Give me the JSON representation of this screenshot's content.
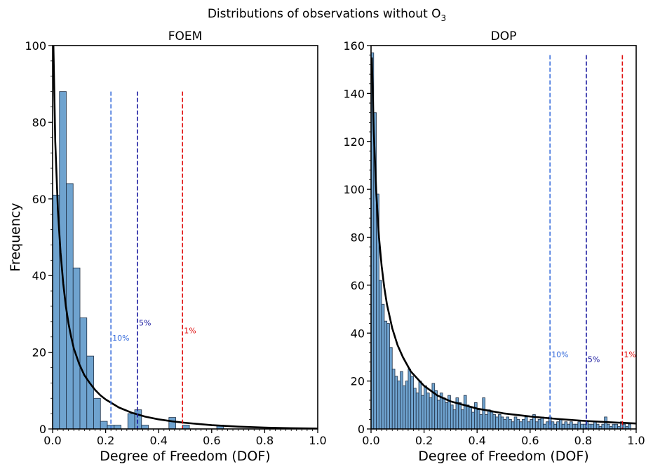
{
  "figure": {
    "suptitle": "Distributions of observations without O",
    "suptitle_subscript": "3"
  },
  "colors": {
    "bar_fill": "#6fa3cf",
    "bar_edge": "#1f2f45",
    "curve": "#000000",
    "line_10pct": "#3b6fdc",
    "line_5pct": "#1a1aa0",
    "line_1pct": "#e01010"
  },
  "chart_data": [
    {
      "type": "bar",
      "title": "FOEM",
      "xlabel": "Degree of Freedom (DOF)",
      "ylabel": "Frequency",
      "xlim": [
        0.0,
        1.0
      ],
      "ylim": [
        0,
        100
      ],
      "xticks": [
        0.0,
        0.2,
        0.4,
        0.6,
        0.8,
        1.0
      ],
      "xtick_labels": [
        "0.0",
        "0.2",
        "0.4",
        "0.6",
        "0.8",
        "1.0"
      ],
      "yticks": [
        0,
        20,
        40,
        60,
        80,
        100
      ],
      "ytick_labels": [
        "0",
        "20",
        "40",
        "60",
        "80",
        "100"
      ],
      "bin_width": 0.0258,
      "bin_start": 0.0,
      "values": [
        61,
        88,
        64,
        42,
        29,
        19,
        8,
        2,
        1,
        1,
        0,
        4,
        5,
        1,
        0,
        0,
        0,
        3,
        0,
        1,
        0,
        0,
        0,
        0,
        1,
        0,
        0,
        0,
        0,
        0,
        0,
        0,
        0,
        0,
        0,
        0,
        0,
        0,
        0
      ],
      "curve": {
        "x": [
          0.003,
          0.01,
          0.02,
          0.03,
          0.04,
          0.05,
          0.06,
          0.07,
          0.08,
          0.1,
          0.12,
          0.14,
          0.16,
          0.18,
          0.2,
          0.25,
          0.3,
          0.35,
          0.4,
          0.45,
          0.5,
          0.6,
          0.7,
          0.8,
          0.9,
          1.0
        ],
        "y": [
          100,
          75,
          57,
          46,
          38,
          32,
          27.5,
          24,
          21,
          17,
          14,
          12,
          10.2,
          8.8,
          7.7,
          5.6,
          4.2,
          3.2,
          2.5,
          2.0,
          1.6,
          1.0,
          0.6,
          0.35,
          0.2,
          0.1
        ]
      },
      "ref_lines": [
        {
          "x": 0.22,
          "label": "10%",
          "label_y": 23,
          "color_key": "line_10pct",
          "top": 88
        },
        {
          "x": 0.32,
          "label": "5%",
          "label_y": 27,
          "color_key": "line_5pct",
          "top": 88
        },
        {
          "x": 0.49,
          "label": "1%",
          "label_y": 25,
          "color_key": "line_1pct",
          "top": 88
        }
      ]
    },
    {
      "type": "bar",
      "title": "DOP",
      "xlabel": "Degree of Freedom (DOF)",
      "ylabel": "",
      "xlim": [
        0.0,
        1.0
      ],
      "ylim": [
        0,
        160
      ],
      "xticks": [
        0.0,
        0.2,
        0.4,
        0.6,
        0.8,
        1.0
      ],
      "xtick_labels": [
        "0.0",
        "0.2",
        "0.4",
        "0.6",
        "0.8",
        "1.0"
      ],
      "yticks": [
        0,
        20,
        40,
        60,
        80,
        100,
        120,
        140,
        160
      ],
      "ytick_labels": [
        "0",
        "20",
        "40",
        "60",
        "80",
        "100",
        "120",
        "140",
        "160"
      ],
      "bin_width": 0.01,
      "bin_start": 0.0,
      "values": [
        157,
        132,
        98,
        62,
        52,
        45,
        44,
        34,
        25,
        22,
        20,
        24,
        18,
        20,
        25,
        22,
        17,
        15,
        20,
        14,
        18,
        15,
        13,
        19,
        16,
        12,
        15,
        13,
        11,
        14,
        10,
        8,
        13,
        11,
        8,
        14,
        10,
        9,
        7,
        11,
        8,
        6,
        13,
        6,
        8,
        7,
        6,
        5,
        6,
        5,
        4,
        5,
        4,
        3,
        5,
        4,
        3,
        4,
        5,
        3,
        4,
        6,
        3,
        4,
        5,
        2,
        3,
        5,
        3,
        2,
        3,
        4,
        2,
        3,
        2,
        3,
        2,
        2,
        3,
        2,
        2,
        3,
        2,
        2,
        3,
        2,
        1,
        2,
        5,
        2,
        1,
        2,
        2,
        1,
        3,
        2,
        1,
        2
      ],
      "curve": {
        "x": [
          0.003,
          0.01,
          0.02,
          0.03,
          0.04,
          0.05,
          0.06,
          0.08,
          0.1,
          0.12,
          0.15,
          0.2,
          0.25,
          0.3,
          0.4,
          0.5,
          0.6,
          0.7,
          0.8,
          0.9,
          1.0
        ],
        "y": [
          155,
          125,
          98,
          80,
          68,
          59,
          52,
          42,
          35,
          30,
          24,
          18,
          14,
          11.5,
          8.5,
          6.5,
          5.2,
          4.2,
          3.4,
          2.8,
          2.3
        ]
      },
      "ref_lines": [
        {
          "x": 0.675,
          "label": "10%",
          "label_y": 30,
          "color_key": "line_10pct",
          "top": 156
        },
        {
          "x": 0.812,
          "label": "5%",
          "label_y": 28,
          "color_key": "line_5pct",
          "top": 156
        },
        {
          "x": 0.948,
          "label": "1%",
          "label_y": 30,
          "color_key": "line_1pct",
          "top": 156
        }
      ]
    }
  ]
}
